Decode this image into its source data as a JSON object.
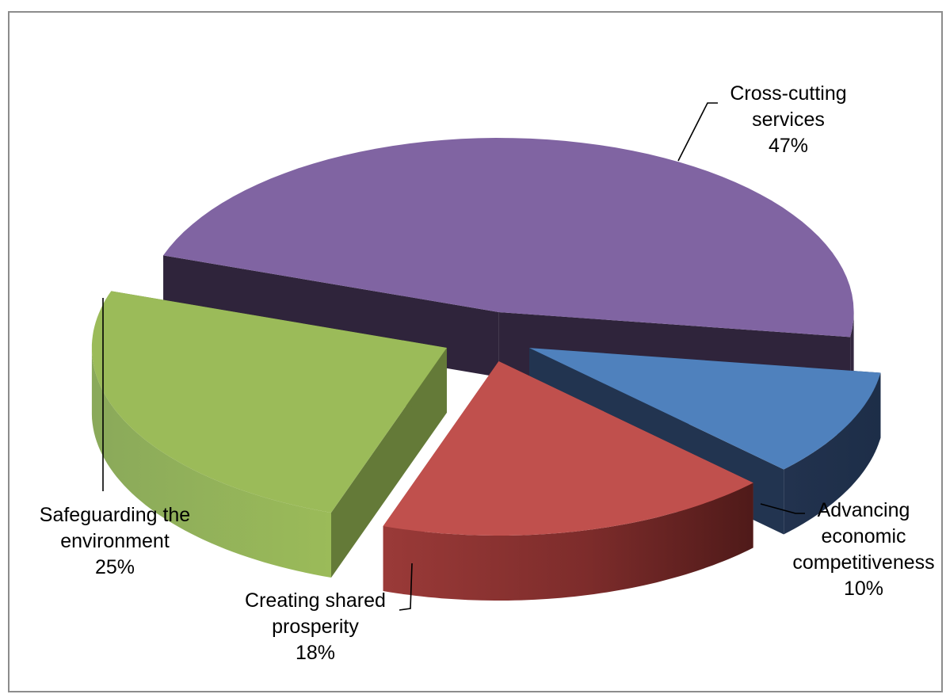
{
  "chart_data": {
    "type": "pie",
    "style": "3d-exploded",
    "title": "",
    "categories": [
      "Cross-cutting services",
      "Advancing economic competitiveness",
      "Creating shared prosperity",
      "Safeguarding the environment"
    ],
    "values": [
      47,
      10,
      18,
      25
    ],
    "unit": "%",
    "labels": [
      {
        "lines": [
          "Cross-cutting",
          "services",
          "47%"
        ]
      },
      {
        "lines": [
          "Advancing",
          "economic",
          "competitiveness",
          "10%"
        ]
      },
      {
        "lines": [
          "Creating shared",
          "prosperity",
          "18%"
        ]
      },
      {
        "lines": [
          "Safeguarding the",
          "environment",
          "25%"
        ]
      }
    ],
    "colors": [
      "#8064a2",
      "#4f81bd",
      "#c0504d",
      "#9bbb59"
    ],
    "legend": "none",
    "grid": false
  }
}
